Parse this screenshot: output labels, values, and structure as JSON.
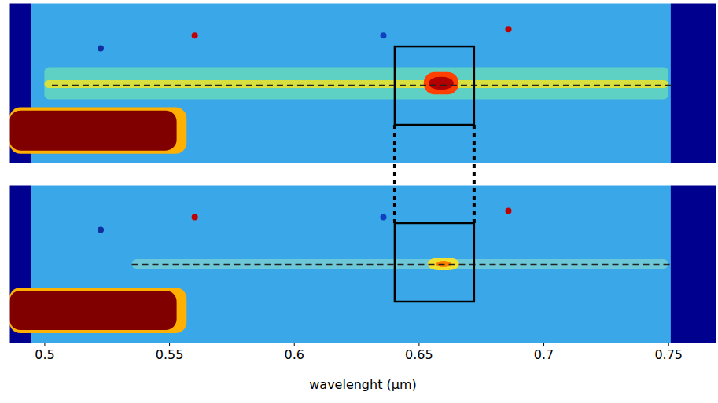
{
  "chart_data": [
    {
      "type": "image",
      "tick_labels": false,
      "xlim": [
        0.486,
        0.769
      ],
      "ylim": [
        0,
        1
      ],
      "background": "#3aa8e8",
      "edges": [
        {
          "x": [
            0.486,
            0.4946
          ],
          "color": "#00008f"
        },
        {
          "x": [
            0.751,
            0.769
          ],
          "color": "#00008f"
        }
      ],
      "bands": [
        {
          "x": [
            0.5,
            0.75
          ],
          "y": [
            0.4,
            0.6
          ],
          "color": "#5fd0c4"
        },
        {
          "x": [
            0.5,
            0.75
          ],
          "y": [
            0.47,
            0.52
          ],
          "color": "#d8e040"
        }
      ],
      "sources": [
        {
          "x": [
            0.486,
            0.557
          ],
          "y": [
            0.06,
            0.35
          ],
          "color": "#ffb000"
        },
        {
          "x": [
            0.486,
            0.553
          ],
          "y": [
            0.08,
            0.33
          ],
          "color": "#800000"
        },
        {
          "x": [
            0.652,
            0.666
          ],
          "y": [
            0.43,
            0.57
          ],
          "color": "#ff4000"
        },
        {
          "x": [
            0.654,
            0.664
          ],
          "y": [
            0.46,
            0.54
          ],
          "color": "#b00000"
        }
      ],
      "spots": [
        {
          "x": 0.5601,
          "y": 0.8,
          "color": "#c00000"
        },
        {
          "x": 0.6858,
          "y": 0.84,
          "color": "#c00000"
        },
        {
          "x": 0.6357,
          "y": 0.8,
          "color": "#1040c0"
        },
        {
          "x": 0.5224,
          "y": 0.72,
          "color": "#1030a0"
        }
      ],
      "trace": {
        "x": [
          0.503,
          0.752
        ],
        "y": 0.49,
        "line_style": "dashed"
      },
      "box": {
        "x": [
          0.6404,
          0.6722
        ],
        "y": [
          0.24,
          0.73
        ]
      }
    },
    {
      "type": "image",
      "tick_labels": "x",
      "xlabel": "wavelenght (μm)",
      "xlim": [
        0.486,
        0.769
      ],
      "ylim": [
        0,
        1
      ],
      "xticks": [
        0.5,
        0.55,
        0.6,
        0.65,
        0.7,
        0.75
      ],
      "background": "#3aa8e8",
      "edges": [
        {
          "x": [
            0.486,
            0.4946
          ],
          "color": "#00008f"
        },
        {
          "x": [
            0.751,
            0.769
          ],
          "color": "#00008f"
        }
      ],
      "bands": [
        {
          "x": [
            0.535,
            0.75
          ],
          "y": [
            0.47,
            0.53
          ],
          "color": "#6cc8d8"
        }
      ],
      "sources": [
        {
          "x": [
            0.486,
            0.557
          ],
          "y": [
            0.06,
            0.35
          ],
          "color": "#ffb000"
        },
        {
          "x": [
            0.486,
            0.553
          ],
          "y": [
            0.08,
            0.33
          ],
          "color": "#800000"
        },
        {
          "x": [
            0.6536,
            0.6662
          ],
          "y": [
            0.46,
            0.54
          ],
          "color": "#f0e030"
        },
        {
          "x": [
            0.657,
            0.663
          ],
          "y": [
            0.48,
            0.52
          ],
          "color": "#ff8000"
        }
      ],
      "spots": [
        {
          "x": 0.5601,
          "y": 0.8,
          "color": "#c00000"
        },
        {
          "x": 0.6858,
          "y": 0.84,
          "color": "#c00000"
        },
        {
          "x": 0.6357,
          "y": 0.8,
          "color": "#1040c0"
        },
        {
          "x": 0.5224,
          "y": 0.72,
          "color": "#1030a0"
        }
      ],
      "trace": {
        "x": [
          0.535,
          0.752
        ],
        "y": 0.5,
        "line_style": "dashed"
      },
      "box": {
        "x": [
          0.6404,
          0.6722
        ],
        "y": [
          0.26,
          0.76
        ]
      }
    }
  ],
  "connector": {
    "line_style": "dotted"
  }
}
